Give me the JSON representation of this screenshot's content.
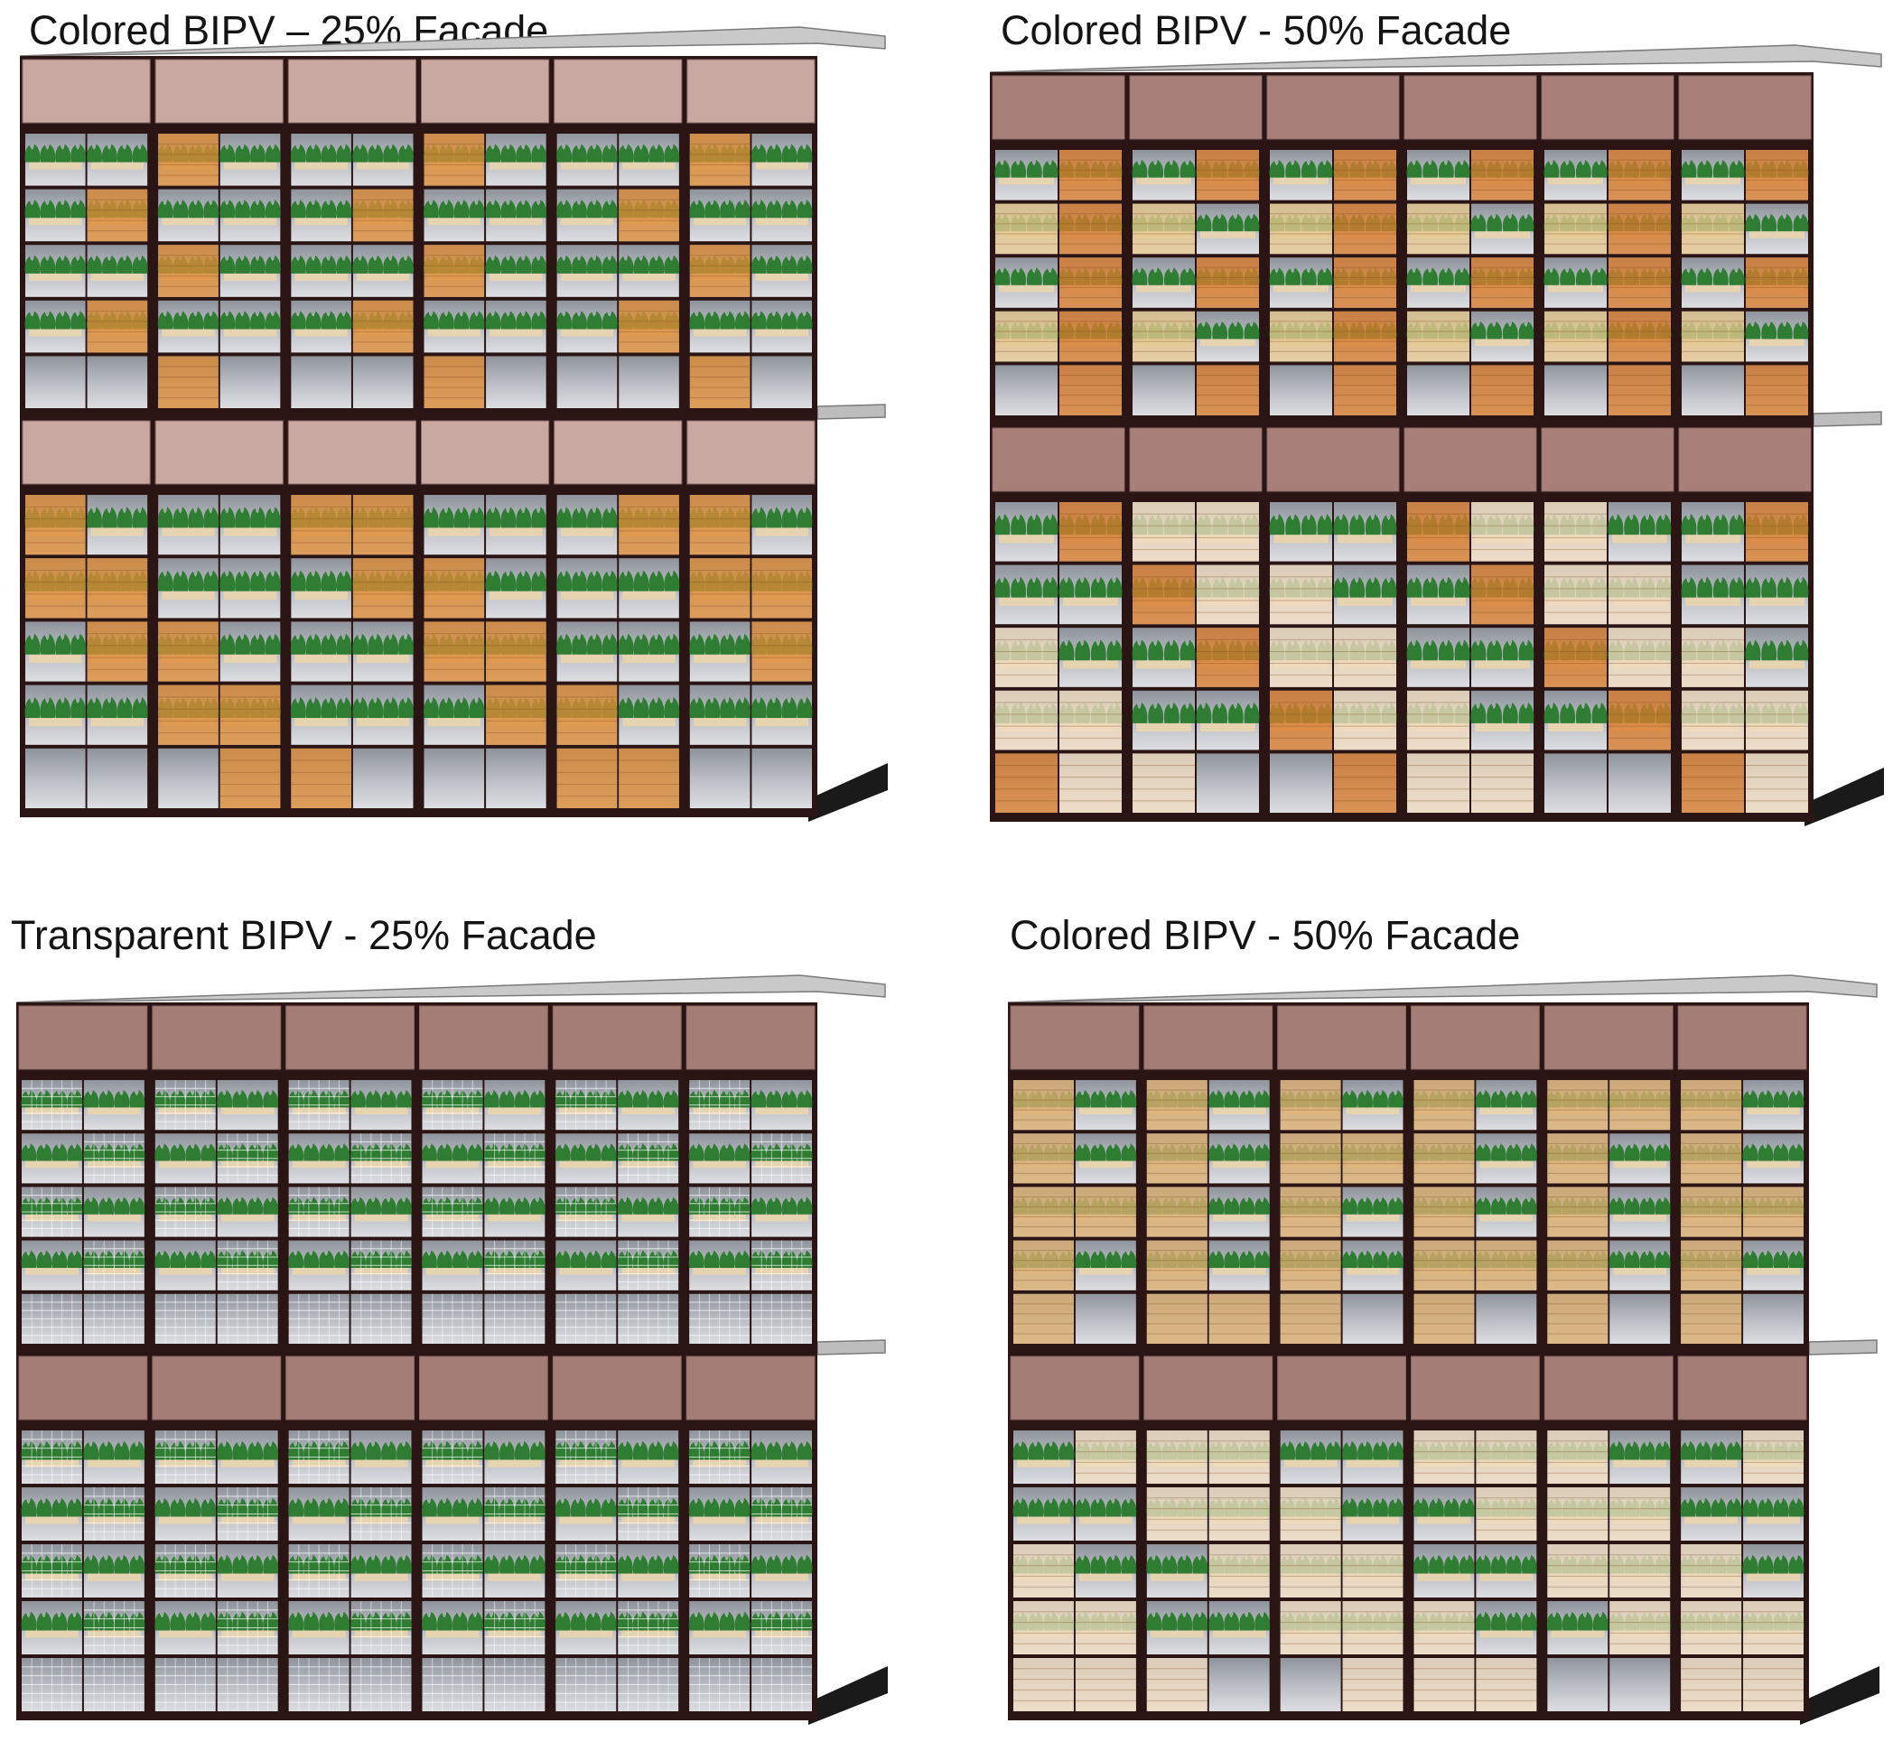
{
  "panels": [
    {
      "title": "Colored BIPV – 25% Facade",
      "bipv_type": "colored",
      "coverage_percent": 25,
      "frame_color": "#d2b3ad",
      "spandrel_color": "#c9a8a2",
      "panel_color": "#dc8a34",
      "upper_pattern": "sparse-orange",
      "lower_pattern": "sparse-orange-reflective"
    },
    {
      "title": "Colored BIPV - 50% Facade",
      "bipv_type": "colored",
      "coverage_percent": 50,
      "frame_color": "#b48f89",
      "spandrel_color": "#a87f79",
      "panel_color": "#d97b2b",
      "upper_pattern": "dense-orange-beige",
      "lower_pattern": "beige-light"
    },
    {
      "title": "Transparent BIPV - 25% Facade",
      "bipv_type": "transparent",
      "coverage_percent": 25,
      "frame_color": "#b08a84",
      "spandrel_color": "#a47d77",
      "panel_color": "#e8e8ec",
      "upper_pattern": "grid-transparent",
      "lower_pattern": "grid-transparent-light"
    },
    {
      "title": "Colored BIPV - 50% Facade",
      "bipv_type": "colored",
      "coverage_percent": 50,
      "frame_color": "#b08a84",
      "spandrel_color": "#a47d77",
      "panel_color": "#e2b06a",
      "upper_pattern": "striped-amber",
      "lower_pattern": "striped-beige"
    }
  ],
  "colors": {
    "mullion": "#2a1414",
    "glass": "#b9bcc2",
    "glass_light": "#dcdee2",
    "plant": "#2e7d32",
    "planter": "#e6d3b0",
    "slab": "#a9a9a9",
    "base": "#1a1a1a"
  }
}
